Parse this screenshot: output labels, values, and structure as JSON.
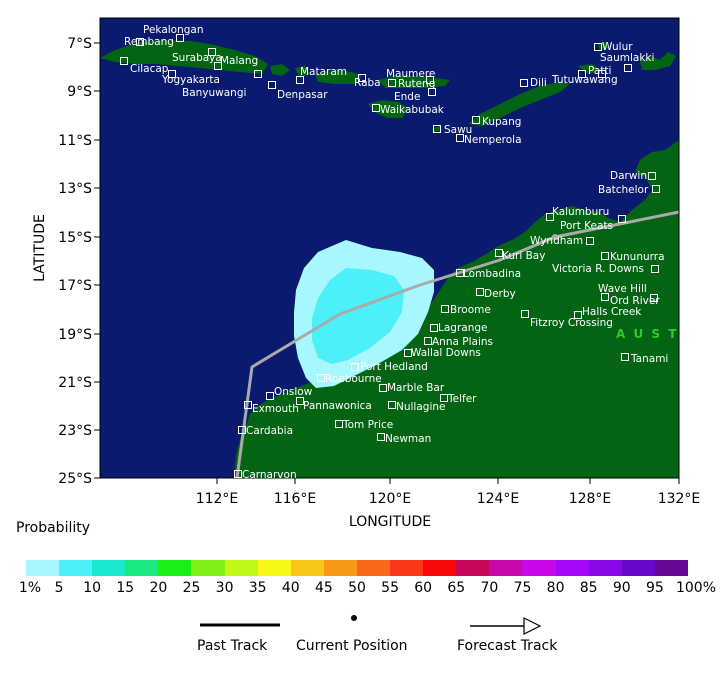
{
  "map": {
    "xlabel": "LONGITUDE",
    "ylabel": "LATITUDE",
    "lon_range": [
      108,
      132
    ],
    "lat_range": [
      -25,
      -6
    ],
    "lon_ticks": [
      "112°E",
      "116°E",
      "120°E",
      "124°E",
      "128°E",
      "132°E"
    ],
    "lat_ticks": [
      "7°S",
      "9°S",
      "11°S",
      "13°S",
      "15°S",
      "17°S",
      "19°S",
      "21°S",
      "23°S",
      "25°S"
    ],
    "region_label": "A U S T",
    "colors": {
      "ocean": "#0a1a6e",
      "land": "#036414",
      "track": "#aaaaaa",
      "prob_outer": "#a6f8fe",
      "prob_inner": "#4df0f8",
      "region_label": "#2ecc2e"
    }
  },
  "places": [
    {
      "name": "Pekalongan"
    },
    {
      "name": "Rembang"
    },
    {
      "name": "Cilacap"
    },
    {
      "name": "Surabaya"
    },
    {
      "name": "Malang"
    },
    {
      "name": "Yogyakarta"
    },
    {
      "name": "Banyuwangi"
    },
    {
      "name": "Mataram"
    },
    {
      "name": "Denpasar"
    },
    {
      "name": "Raba"
    },
    {
      "name": "Maumere"
    },
    {
      "name": "Ruteng"
    },
    {
      "name": "Ende"
    },
    {
      "name": "Waikabubak"
    },
    {
      "name": "Kupang"
    },
    {
      "name": "Sawu"
    },
    {
      "name": "Nemperola"
    },
    {
      "name": "Dili"
    },
    {
      "name": "Tutuwawang"
    },
    {
      "name": "Wulur"
    },
    {
      "name": "Patti"
    },
    {
      "name": "Saumlakki"
    },
    {
      "name": "Darwin"
    },
    {
      "name": "Batchelor"
    },
    {
      "name": "Kalumburu"
    },
    {
      "name": "Port Keats"
    },
    {
      "name": "Wyndham"
    },
    {
      "name": "Kununurra"
    },
    {
      "name": "Victoria R. Downs"
    },
    {
      "name": "Kuri Bay"
    },
    {
      "name": "Lombadina"
    },
    {
      "name": "Derby"
    },
    {
      "name": "Wave Hill"
    },
    {
      "name": "Ord River"
    },
    {
      "name": "Broome"
    },
    {
      "name": "Halls Creek"
    },
    {
      "name": "Fitzroy Crossing"
    },
    {
      "name": "Lagrange"
    },
    {
      "name": "Anna Plains"
    },
    {
      "name": "Wallal Downs"
    },
    {
      "name": "Tanami"
    },
    {
      "name": "Port Hedland"
    },
    {
      "name": "Roebourne"
    },
    {
      "name": "Marble Bar"
    },
    {
      "name": "Onslow"
    },
    {
      "name": "Telfer"
    },
    {
      "name": "Exmouth"
    },
    {
      "name": "Pannawonica"
    },
    {
      "name": "Nullagine"
    },
    {
      "name": "Tom Price"
    },
    {
      "name": "Cardabia"
    },
    {
      "name": "Newman"
    },
    {
      "name": "Carnarvon"
    }
  ],
  "legend": {
    "probability_title": "Probability",
    "scale_labels": [
      "1%",
      "5",
      "10",
      "15",
      "20",
      "25",
      "30",
      "35",
      "40",
      "45",
      "50",
      "55",
      "60",
      "65",
      "70",
      "75",
      "80",
      "85",
      "90",
      "95",
      "100%"
    ],
    "scale_colors": [
      "#a6f8fe",
      "#4df0f8",
      "#1ae8d0",
      "#1ae880",
      "#18f018",
      "#80f018",
      "#c0f818",
      "#f8f818",
      "#f8c818",
      "#f89818",
      "#f86818",
      "#f83818",
      "#f80808",
      "#c8085a",
      "#c808a8",
      "#c808e8",
      "#a808f8",
      "#8808e8",
      "#6808c8",
      "#680898"
    ],
    "past_track": "Past Track",
    "current_position": "Current Position",
    "forecast_track": "Forecast Track"
  }
}
